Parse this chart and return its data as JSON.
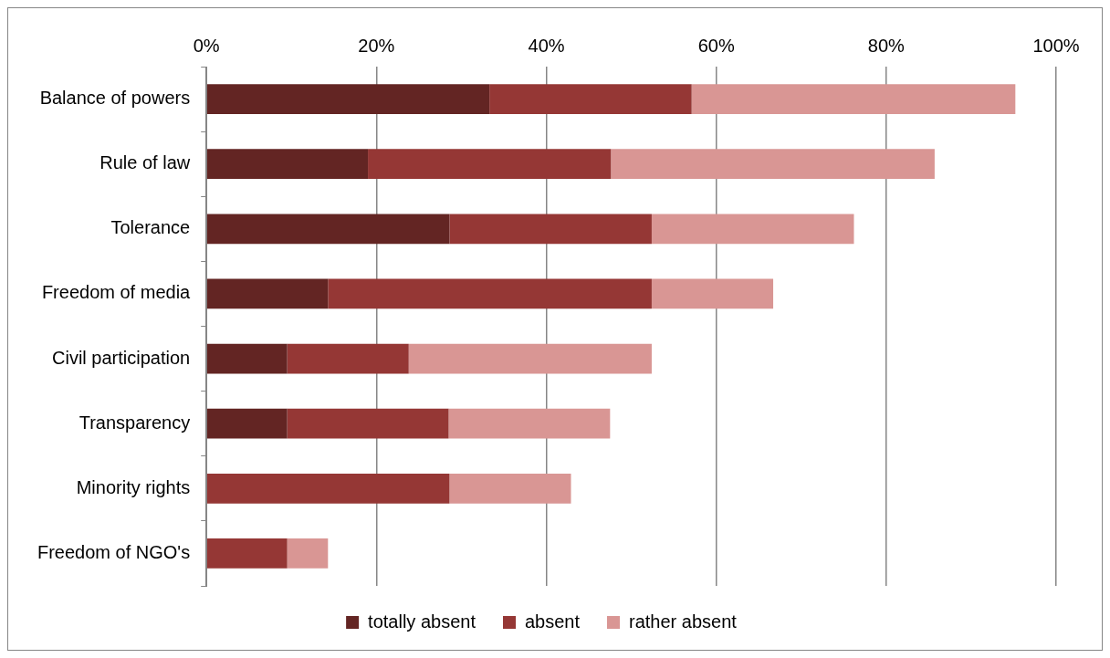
{
  "chart_data": {
    "type": "bar",
    "orientation": "horizontal",
    "stacked": true,
    "categories": [
      "Balance of powers",
      "Rule of law",
      "Tolerance",
      "Freedom of media",
      "Civil participation",
      "Transparency",
      "Minority rights",
      "Freedom of NGO's"
    ],
    "series": [
      {
        "name": "totally absent",
        "color": "#632523",
        "values": [
          33.3,
          19.0,
          28.6,
          14.3,
          9.5,
          9.5,
          0,
          0
        ]
      },
      {
        "name": "absent",
        "color": "#953735",
        "values": [
          23.8,
          28.6,
          23.8,
          38.1,
          14.3,
          19.0,
          28.6,
          9.5
        ]
      },
      {
        "name": "rather absent",
        "color": "#d99694",
        "values": [
          38.1,
          38.1,
          23.8,
          14.3,
          28.6,
          19.0,
          14.3,
          4.8
        ]
      }
    ],
    "xlim": [
      0,
      100
    ],
    "xticks": [
      {
        "value": 0,
        "label": "0%"
      },
      {
        "value": 20,
        "label": "20%"
      },
      {
        "value": 40,
        "label": "40%"
      },
      {
        "value": 60,
        "label": "60%"
      },
      {
        "value": 80,
        "label": "80%"
      },
      {
        "value": 100,
        "label": "100%"
      }
    ],
    "grid": "x",
    "legend": "bottom"
  }
}
